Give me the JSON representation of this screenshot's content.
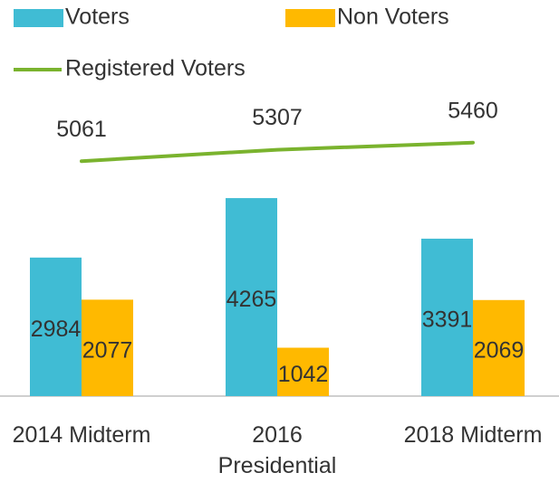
{
  "chart_data": {
    "type": "bar",
    "categories": [
      "2014 Midterm",
      "2016 Presidential",
      "2018 Midterm"
    ],
    "series": [
      {
        "name": "Voters",
        "color": "#40bcd4",
        "type": "bar",
        "values": [
          2984,
          4265,
          3391
        ]
      },
      {
        "name": "Non Voters",
        "color": "#ffb900",
        "type": "bar",
        "values": [
          2077,
          1042,
          2069
        ]
      },
      {
        "name": "Registered Voters",
        "color": "#7ab32e",
        "type": "line",
        "values": [
          5061,
          5307,
          5460
        ]
      }
    ],
    "ylim": [
      0,
      6000
    ],
    "grid": false,
    "legend": "top"
  }
}
